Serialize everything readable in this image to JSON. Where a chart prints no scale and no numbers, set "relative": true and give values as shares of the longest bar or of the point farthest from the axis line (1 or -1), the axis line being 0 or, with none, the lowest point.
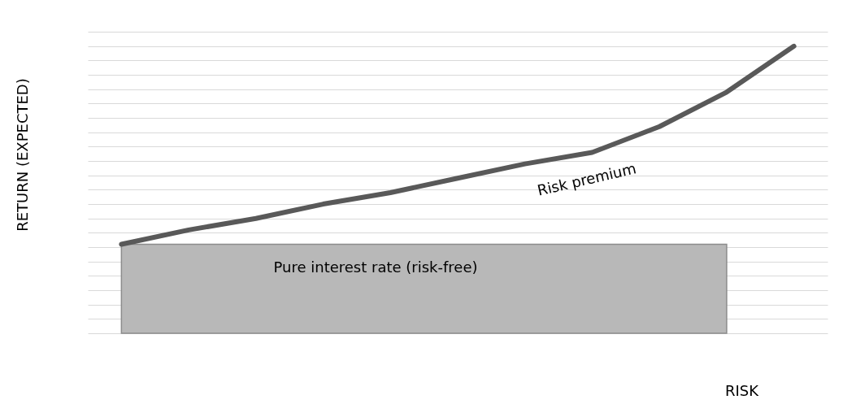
{
  "chart_data": {
    "type": "line",
    "relative": true,
    "xlabel": "RISK",
    "ylabel": "RETURN (EXPECTED)",
    "categories": [
      null,
      null,
      null,
      null,
      null,
      null,
      null,
      null,
      null,
      null,
      null
    ],
    "series": [
      {
        "type": "area",
        "color": "#b8b8b8",
        "values": [
          0.31,
          0.31,
          0.31,
          0.31,
          0.31,
          0.31,
          0.31,
          0.31,
          0.31,
          0.31,
          null
        ]
      },
      {
        "color": "#595959",
        "values": [
          0.31,
          0.36,
          0.4,
          0.45,
          0.49,
          0.54,
          0.59,
          0.63,
          0.72,
          0.84,
          1
        ]
      }
    ],
    "annotations": [
      "Risk premium",
      "Pure interest rate (risk-free)"
    ],
    "grid": "y"
  }
}
